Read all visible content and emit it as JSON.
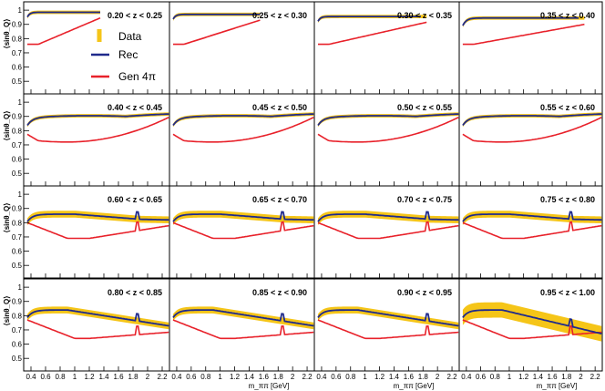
{
  "chart_data": {
    "type": "line",
    "panels": [
      {
        "label": "0.20 < z < 0.25"
      },
      {
        "label": "0.25 < z < 0.30"
      },
      {
        "label": "0.30 < z < 0.35"
      },
      {
        "label": "0.35 < z < 0.40"
      },
      {
        "label": "0.40 < z < 0.45"
      },
      {
        "label": "0.45 < z < 0.50"
      },
      {
        "label": "0.50 < z < 0.55"
      },
      {
        "label": "0.55 < z < 0.60"
      },
      {
        "label": "0.60 < z < 0.65"
      },
      {
        "label": "0.65 < z < 0.70"
      },
      {
        "label": "0.70 < z < 0.75"
      },
      {
        "label": "0.75 < z < 0.80"
      },
      {
        "label": "0.80 < z < 0.85"
      },
      {
        "label": "0.85 < z < 0.90"
      },
      {
        "label": "0.90 < z < 0.95"
      },
      {
        "label": "0.95 < z < 1.00"
      }
    ],
    "ylabel": "⟨sinθ_Q⟩",
    "xlabel": "m_ππ [GeV]",
    "xlim": [
      0.3,
      2.3
    ],
    "ylim": [
      0.45,
      1.02
    ],
    "xticks": [
      "0.4",
      "0.6",
      "0.8",
      "1",
      "1.2",
      "1.4",
      "1.6",
      "1.8",
      "2",
      "2.2"
    ],
    "xtick_values": [
      0.4,
      0.6,
      0.8,
      1.0,
      1.2,
      1.4,
      1.6,
      1.8,
      2.0,
      2.2
    ],
    "yticks": [
      "0.5",
      "0.6",
      "0.7",
      "0.8",
      "0.9",
      "1"
    ],
    "ytick_values": [
      0.5,
      0.6,
      0.7,
      0.8,
      0.9,
      1.0
    ],
    "legend": {
      "placement": "panel-1-right",
      "entries": [
        {
          "name": "Data",
          "color": "#f5c518"
        },
        {
          "name": "Rec",
          "color": "#1f2a8c"
        },
        {
          "name": "Gen 4π",
          "color": "#e8212a"
        }
      ]
    },
    "series_colors": {
      "data": "#f5c518",
      "rec": "#1f2a8c",
      "gen": "#e8212a"
    }
  }
}
